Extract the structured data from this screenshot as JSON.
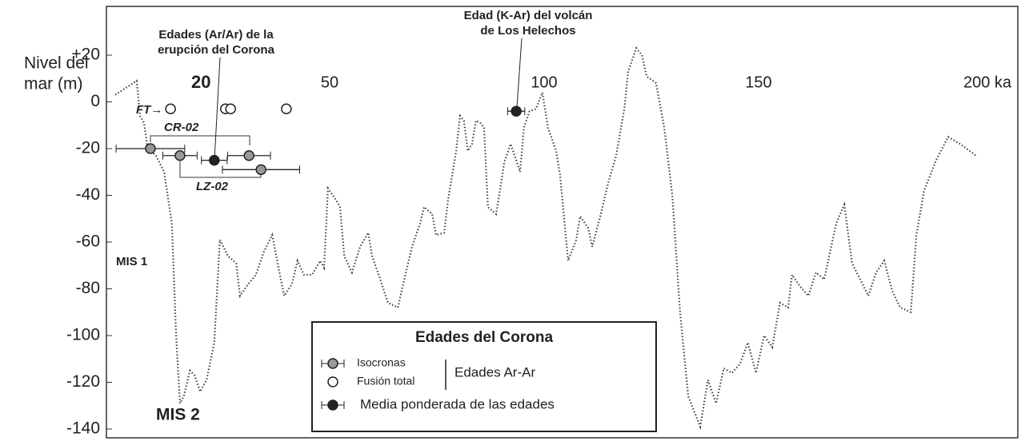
{
  "chart_data": {
    "type": "line",
    "y_label": [
      "Nivel del",
      "mar (m)"
    ],
    "xlim": [
      0,
      210
    ],
    "ylim": [
      -140,
      20
    ],
    "xticks": [
      20,
      50,
      100,
      150,
      {
        "value": 200,
        "label": "200 ka"
      }
    ],
    "yticks": [
      {
        "value": 20,
        "label": "+20"
      },
      0,
      -20,
      -40,
      -60,
      -80,
      -100,
      -120,
      -140
    ],
    "series": [
      {
        "color": "#444",
        "style": "dotted",
        "x": [
          0,
          5,
          5.8,
          6.7,
          7.6,
          9.5,
          11.4,
          13.2,
          14.2,
          15.1,
          16,
          17.4,
          18.5,
          19.8,
          21.3,
          23.1,
          24.4,
          26.3,
          28.2,
          29.1,
          31,
          32.8,
          34.7,
          36.6,
          38.4,
          39.4,
          41.2,
          42.5,
          44,
          45.9,
          47.8,
          48.7,
          49.6,
          51.5,
          52.4,
          53.4,
          55.2,
          57.1,
          59,
          59.9,
          61.8,
          63.6,
          65.9,
          67.4,
          69.2,
          71.1,
          72,
          73.9,
          74.8,
          76.7,
          77.6,
          79.5,
          80.4,
          81.3,
          82.2,
          83.2,
          84.1,
          85.1,
          86,
          86.9,
          88.8,
          89.7,
          90.7,
          92.2,
          93.5,
          94.4,
          95.3,
          96.6,
          98.1,
          99.6,
          100.9,
          102.8,
          103.7,
          105.6,
          107.5,
          108.4,
          110.3,
          111.2,
          113.1,
          114.9,
          116.8,
          118.7,
          119.6,
          121.5,
          122.8,
          123.9,
          126.1,
          128,
          129.9,
          131.7,
          133.6,
          136.4,
          138.2,
          140.1,
          141.9,
          143.8,
          145.7,
          147.5,
          149.4,
          151.3,
          153.2,
          155,
          156.9,
          157.8,
          159.7,
          161.6,
          163.4,
          165.3,
          168.1,
          170,
          171.8,
          173.7,
          175.6,
          177.4,
          179.3,
          181.2,
          183,
          185.5,
          186.8,
          188.6,
          191.4,
          194.2,
          197,
          200.7
        ],
        "values": [
          3,
          9,
          -6,
          -9,
          -20,
          -23,
          -30,
          -52,
          -100,
          -129,
          -126,
          -115,
          -117,
          -124,
          -119,
          -103,
          -59,
          -66,
          -69,
          -83,
          -78,
          -74,
          -64,
          -57,
          -74,
          -83,
          -78,
          -68,
          -74,
          -74,
          -68,
          -71,
          -37,
          -42,
          -45,
          -66,
          -73,
          -62,
          -56,
          -66,
          -76,
          -86,
          -88,
          -76,
          -62,
          -52,
          -45,
          -48,
          -57,
          -56,
          -42,
          -21,
          -6,
          -8,
          -21,
          -18,
          -8,
          -9,
          -11,
          -45,
          -48,
          -38,
          -26,
          -18,
          -25,
          -30,
          -11,
          -4,
          -3,
          4,
          -11,
          -21,
          -31,
          -68,
          -59,
          -49,
          -54,
          -62,
          -49,
          -35,
          -23,
          -3,
          13,
          23,
          20,
          11,
          8,
          -11,
          -40,
          -90,
          -126,
          -139,
          -119,
          -129,
          -114,
          -116,
          -112,
          -103,
          -116,
          -100,
          -105,
          -86,
          -88,
          -74,
          -79,
          -83,
          -73,
          -76,
          -52,
          -44,
          -69,
          -76,
          -83,
          -73,
          -68,
          -81,
          -88,
          -90,
          -57,
          -38,
          -25,
          -15,
          -18,
          -23
        ]
      },
      {
        "name": "Isocronas",
        "color": "#999",
        "marker": "filled",
        "x": [
          8.2,
          15.1,
          31.2,
          34
        ],
        "values": [
          -20,
          -23,
          -23,
          -29
        ],
        "xerr": [
          8,
          4,
          5,
          9
        ]
      },
      {
        "name": "Fusión total",
        "color": "#fff",
        "marker": "open",
        "x": [
          12.9,
          25.7,
          26.9,
          39.9
        ],
        "values": [
          -3,
          -3,
          -3,
          -3
        ]
      },
      {
        "name": "Media ponderada de las edades",
        "color": "#222",
        "marker": "filled",
        "x": [
          23.1,
          93.5
        ],
        "values": [
          -25,
          -4
        ],
        "xerr": [
          3,
          2
        ]
      }
    ],
    "legend_title": "Edades del Corona",
    "legend_group": "Edades Ar-Ar",
    "annotations": {
      "corona": [
        "Edades (Ar/Ar) de la",
        "erupción del Corona"
      ],
      "helechos": [
        "Edad (K-Ar) del volcán",
        "de Los Helechos"
      ],
      "ft": "FT→",
      "cr": "CR-02",
      "lz": "LZ-02",
      "mis1": "MIS 1",
      "mis2": "MIS 2"
    }
  }
}
